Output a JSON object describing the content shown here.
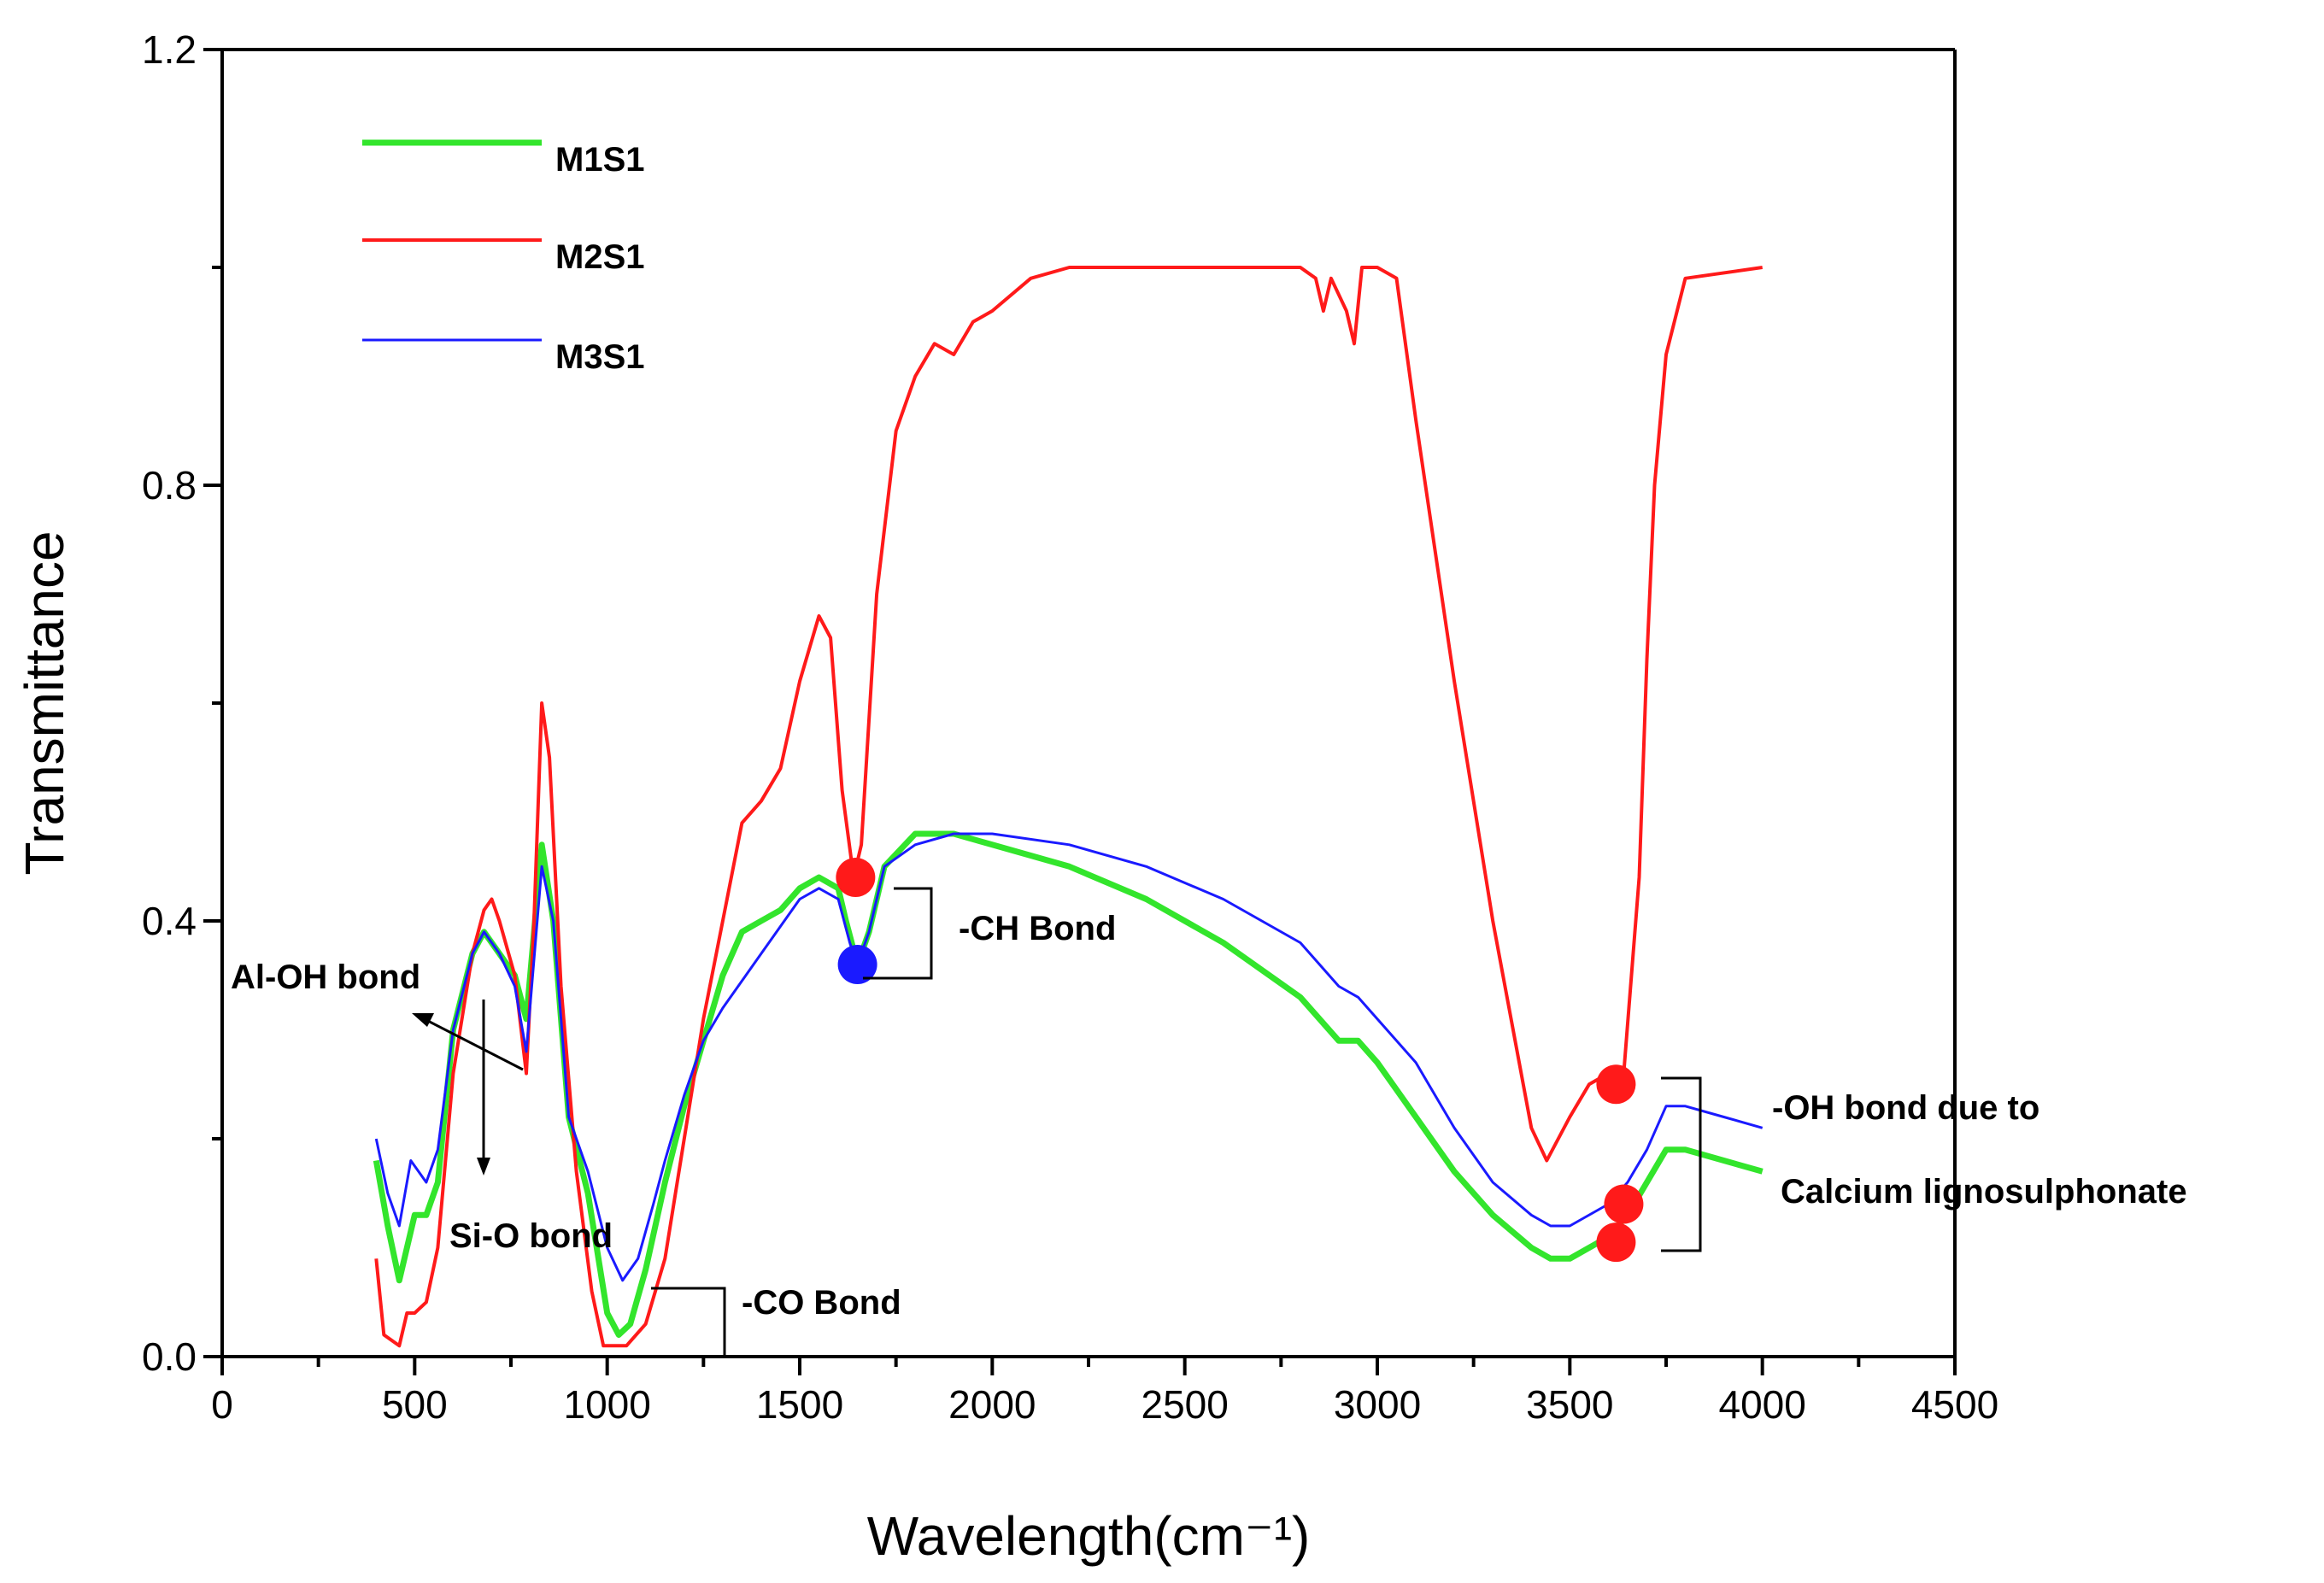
{
  "chart_data": {
    "type": "line",
    "xlabel": "Wavelength(cm⁻¹)",
    "ylabel": "Transmittance",
    "xlim": [
      0,
      4500
    ],
    "ylim": [
      0,
      1.2
    ],
    "x_ticks": [
      "0",
      "500",
      "1000",
      "1500",
      "2000",
      "2500",
      "3000",
      "3500",
      "4000",
      "4500"
    ],
    "y_ticks": [
      "0.0",
      "0.4",
      "0.8",
      "1.2"
    ],
    "legend_position": "top-left",
    "series": [
      {
        "name": "M1S1",
        "color": "#33e52c",
        "points": [
          [
            400,
            0.18
          ],
          [
            430,
            0.12
          ],
          [
            460,
            0.07
          ],
          [
            500,
            0.13
          ],
          [
            530,
            0.13
          ],
          [
            560,
            0.16
          ],
          [
            600,
            0.3
          ],
          [
            650,
            0.37
          ],
          [
            680,
            0.39
          ],
          [
            720,
            0.37
          ],
          [
            760,
            0.35
          ],
          [
            790,
            0.31
          ],
          [
            830,
            0.47
          ],
          [
            860,
            0.4
          ],
          [
            900,
            0.22
          ],
          [
            950,
            0.15
          ],
          [
            1000,
            0.04
          ],
          [
            1030,
            0.02
          ],
          [
            1060,
            0.03
          ],
          [
            1100,
            0.08
          ],
          [
            1150,
            0.16
          ],
          [
            1200,
            0.23
          ],
          [
            1250,
            0.29
          ],
          [
            1300,
            0.35
          ],
          [
            1350,
            0.39
          ],
          [
            1400,
            0.4
          ],
          [
            1450,
            0.41
          ],
          [
            1500,
            0.43
          ],
          [
            1550,
            0.44
          ],
          [
            1600,
            0.43
          ],
          [
            1620,
            0.4
          ],
          [
            1650,
            0.36
          ],
          [
            1680,
            0.39
          ],
          [
            1720,
            0.45
          ],
          [
            1800,
            0.48
          ],
          [
            1850,
            0.48
          ],
          [
            1900,
            0.48
          ],
          [
            2000,
            0.47
          ],
          [
            2200,
            0.45
          ],
          [
            2400,
            0.42
          ],
          [
            2600,
            0.38
          ],
          [
            2800,
            0.33
          ],
          [
            2850,
            0.31
          ],
          [
            2900,
            0.29
          ],
          [
            2950,
            0.29
          ],
          [
            3000,
            0.27
          ],
          [
            3100,
            0.22
          ],
          [
            3200,
            0.17
          ],
          [
            3300,
            0.13
          ],
          [
            3400,
            0.1
          ],
          [
            3450,
            0.09
          ],
          [
            3500,
            0.09
          ],
          [
            3600,
            0.11
          ],
          [
            3650,
            0.13
          ],
          [
            3700,
            0.16
          ],
          [
            3750,
            0.19
          ],
          [
            3800,
            0.19
          ],
          [
            3900,
            0.18
          ],
          [
            4000,
            0.17
          ]
        ]
      },
      {
        "name": "M2S1",
        "color": "#ff1a1a",
        "points": [
          [
            400,
            0.09
          ],
          [
            420,
            0.02
          ],
          [
            460,
            0.01
          ],
          [
            480,
            0.04
          ],
          [
            500,
            0.04
          ],
          [
            530,
            0.05
          ],
          [
            560,
            0.1
          ],
          [
            600,
            0.26
          ],
          [
            650,
            0.37
          ],
          [
            680,
            0.41
          ],
          [
            700,
            0.42
          ],
          [
            720,
            0.4
          ],
          [
            760,
            0.35
          ],
          [
            790,
            0.26
          ],
          [
            810,
            0.4
          ],
          [
            830,
            0.6
          ],
          [
            850,
            0.55
          ],
          [
            880,
            0.34
          ],
          [
            920,
            0.17
          ],
          [
            960,
            0.06
          ],
          [
            990,
            0.01
          ],
          [
            1050,
            0.01
          ],
          [
            1100,
            0.03
          ],
          [
            1150,
            0.09
          ],
          [
            1200,
            0.2
          ],
          [
            1250,
            0.31
          ],
          [
            1300,
            0.4
          ],
          [
            1350,
            0.49
          ],
          [
            1400,
            0.51
          ],
          [
            1450,
            0.54
          ],
          [
            1500,
            0.62
          ],
          [
            1550,
            0.68
          ],
          [
            1580,
            0.66
          ],
          [
            1610,
            0.52
          ],
          [
            1640,
            0.44
          ],
          [
            1660,
            0.47
          ],
          [
            1700,
            0.7
          ],
          [
            1750,
            0.85
          ],
          [
            1800,
            0.9
          ],
          [
            1850,
            0.93
          ],
          [
            1900,
            0.92
          ],
          [
            1950,
            0.95
          ],
          [
            2000,
            0.96
          ],
          [
            2100,
            0.99
          ],
          [
            2200,
            1.0
          ],
          [
            2500,
            1.0
          ],
          [
            2800,
            1.0
          ],
          [
            2840,
            0.99
          ],
          [
            2860,
            0.96
          ],
          [
            2880,
            0.99
          ],
          [
            2920,
            0.96
          ],
          [
            2940,
            0.93
          ],
          [
            2960,
            1.0
          ],
          [
            3000,
            1.0
          ],
          [
            3050,
            0.99
          ],
          [
            3100,
            0.86
          ],
          [
            3200,
            0.62
          ],
          [
            3300,
            0.4
          ],
          [
            3400,
            0.21
          ],
          [
            3440,
            0.18
          ],
          [
            3500,
            0.22
          ],
          [
            3550,
            0.25
          ],
          [
            3600,
            0.26
          ],
          [
            3620,
            0.24
          ],
          [
            3640,
            0.26
          ],
          [
            3680,
            0.44
          ],
          [
            3700,
            0.64
          ],
          [
            3720,
            0.8
          ],
          [
            3750,
            0.92
          ],
          [
            3800,
            0.99
          ],
          [
            4000,
            1.0
          ]
        ]
      },
      {
        "name": "M3S1",
        "color": "#1a1aff",
        "points": [
          [
            400,
            0.2
          ],
          [
            430,
            0.15
          ],
          [
            460,
            0.12
          ],
          [
            490,
            0.18
          ],
          [
            530,
            0.16
          ],
          [
            560,
            0.19
          ],
          [
            600,
            0.3
          ],
          [
            650,
            0.37
          ],
          [
            680,
            0.39
          ],
          [
            720,
            0.37
          ],
          [
            760,
            0.34
          ],
          [
            790,
            0.28
          ],
          [
            830,
            0.45
          ],
          [
            860,
            0.4
          ],
          [
            900,
            0.22
          ],
          [
            950,
            0.17
          ],
          [
            1000,
            0.1
          ],
          [
            1040,
            0.07
          ],
          [
            1080,
            0.09
          ],
          [
            1120,
            0.14
          ],
          [
            1150,
            0.18
          ],
          [
            1200,
            0.24
          ],
          [
            1250,
            0.29
          ],
          [
            1300,
            0.32
          ],
          [
            1400,
            0.37
          ],
          [
            1500,
            0.42
          ],
          [
            1550,
            0.43
          ],
          [
            1600,
            0.42
          ],
          [
            1630,
            0.38
          ],
          [
            1650,
            0.36
          ],
          [
            1680,
            0.39
          ],
          [
            1720,
            0.45
          ],
          [
            1800,
            0.47
          ],
          [
            1900,
            0.48
          ],
          [
            2000,
            0.48
          ],
          [
            2200,
            0.47
          ],
          [
            2400,
            0.45
          ],
          [
            2600,
            0.42
          ],
          [
            2800,
            0.38
          ],
          [
            2850,
            0.36
          ],
          [
            2900,
            0.34
          ],
          [
            2950,
            0.33
          ],
          [
            3000,
            0.31
          ],
          [
            3100,
            0.27
          ],
          [
            3200,
            0.21
          ],
          [
            3300,
            0.16
          ],
          [
            3400,
            0.13
          ],
          [
            3450,
            0.12
          ],
          [
            3500,
            0.12
          ],
          [
            3600,
            0.14
          ],
          [
            3650,
            0.16
          ],
          [
            3700,
            0.19
          ],
          [
            3750,
            0.23
          ],
          [
            3800,
            0.23
          ],
          [
            3900,
            0.22
          ],
          [
            4000,
            0.21
          ]
        ]
      }
    ],
    "markers": [
      {
        "series": "M2S1",
        "x": 1645,
        "y": 0.44,
        "color": "#ff1a1a"
      },
      {
        "series": "M3S1",
        "x": 1650,
        "y": 0.36,
        "color": "#1a1aff"
      },
      {
        "series": "M2S1",
        "x": 3620,
        "y": 0.25,
        "color": "#ff1a1a"
      },
      {
        "series": "M3S1",
        "x": 3640,
        "y": 0.14,
        "color": "#ff1a1a"
      },
      {
        "series": "M1S1",
        "x": 3620,
        "y": 0.105,
        "color": "#ff1a1a"
      }
    ],
    "annotations": {
      "al_oh": "Al-OH bond",
      "si_o": "Si-O bond",
      "co": "-CO Bond",
      "ch": "-CH Bond",
      "oh_line1": "-OH bond due to",
      "oh_line2": "Calcium lignosulphonate"
    }
  }
}
